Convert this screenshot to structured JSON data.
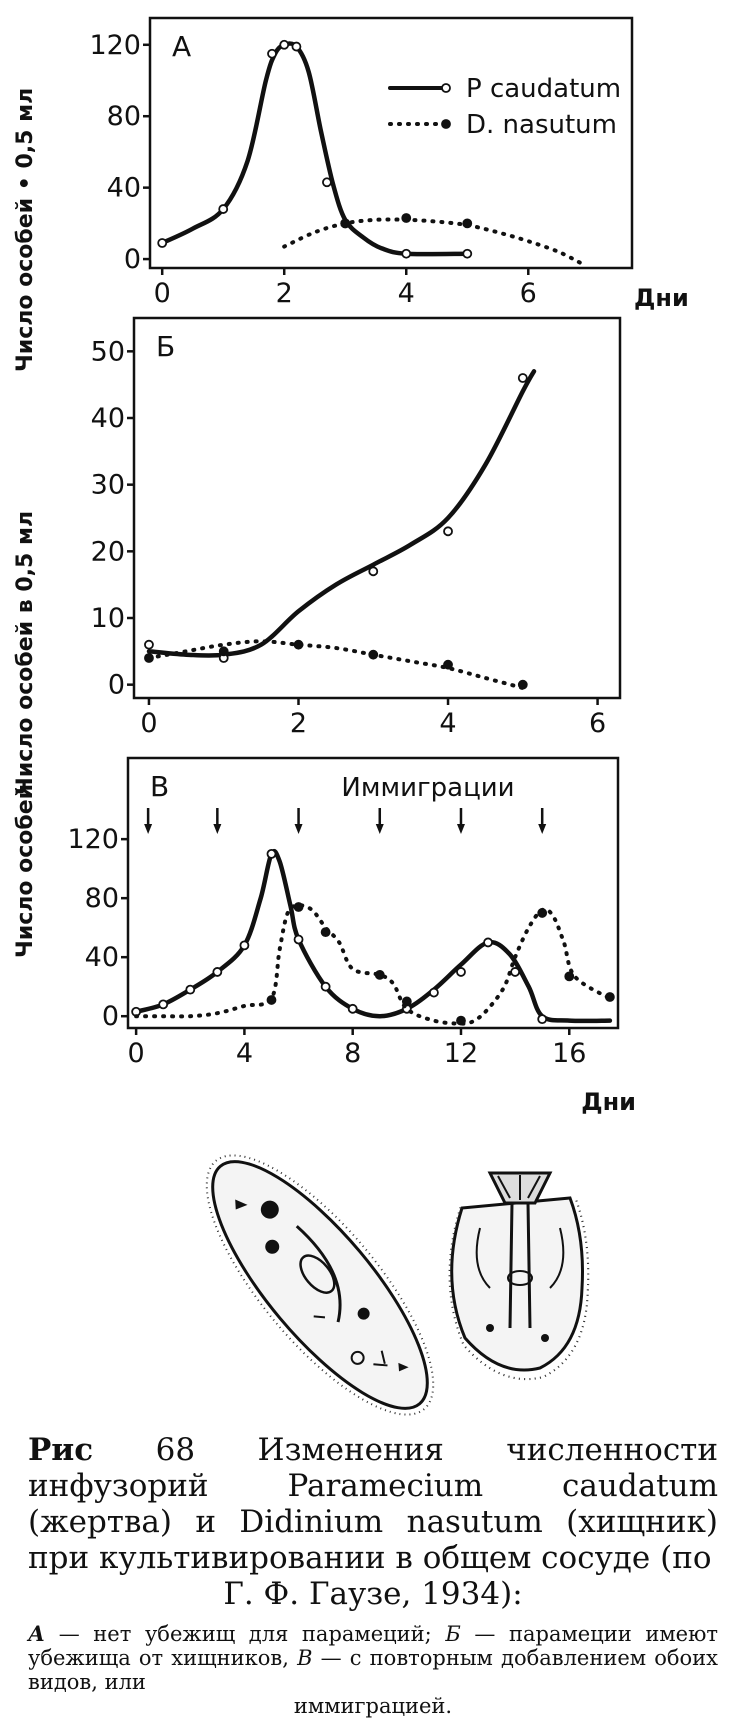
{
  "figure": {
    "ylabel_top": "Число особей • 0,5 мл",
    "ylabel_middle": "Число особей в 0,5 мл",
    "ylabel_bottom": "Число особей"
  },
  "chart_data": [
    {
      "type": "line",
      "panel_label": "А",
      "xlabel": "Дни",
      "ylabel": "Число особей • 0,5 мл",
      "xlim": [
        -0.2,
        7.7
      ],
      "ylim": [
        -5,
        135
      ],
      "x_ticks": [
        0,
        2,
        4,
        6
      ],
      "x_tick_labels": [
        "0",
        "2",
        "4",
        "6"
      ],
      "y_ticks": [
        0,
        40,
        80,
        120
      ],
      "y_tick_labels": [
        "0",
        "40",
        "80",
        "120"
      ],
      "legend": "top-right",
      "series": [
        {
          "name": "P caudatum",
          "style": "solid",
          "color": "#111111",
          "line": [
            [
              0,
              9
            ],
            [
              0.5,
              17
            ],
            [
              1,
              28
            ],
            [
              1.4,
              55
            ],
            [
              1.7,
              100
            ],
            [
              1.85,
              115
            ],
            [
              2,
              120
            ],
            [
              2.2,
              119
            ],
            [
              2.4,
              105
            ],
            [
              2.6,
              72
            ],
            [
              2.8,
              42
            ],
            [
              3,
              22
            ],
            [
              3.3,
              12
            ],
            [
              3.6,
              6
            ],
            [
              4,
              3
            ],
            [
              5,
              3
            ]
          ],
          "points": [
            [
              0,
              9
            ],
            [
              1,
              28
            ],
            [
              1.8,
              115
            ],
            [
              2,
              120
            ],
            [
              2.2,
              119
            ],
            [
              2.7,
              43
            ],
            [
              3,
              20
            ],
            [
              4,
              3
            ],
            [
              5,
              3
            ]
          ]
        },
        {
          "name": "D. nasutum",
          "style": "dotted",
          "color": "#111111",
          "line": [
            [
              2,
              7
            ],
            [
              2.5,
              15
            ],
            [
              3,
              20
            ],
            [
              3.5,
              22
            ],
            [
              4,
              22
            ],
            [
              4.5,
              21
            ],
            [
              5,
              19
            ],
            [
              5.5,
              15
            ],
            [
              6,
              10
            ],
            [
              6.5,
              4
            ],
            [
              6.9,
              -3
            ]
          ],
          "points": [
            [
              3,
              20
            ],
            [
              4,
              23
            ],
            [
              5,
              20
            ]
          ]
        }
      ]
    },
    {
      "type": "line",
      "panel_label": "Б",
      "xlabel": "",
      "ylabel": "Число особей в 0,5 мл",
      "xlim": [
        -0.2,
        6.3
      ],
      "ylim": [
        -2,
        55
      ],
      "x_ticks": [
        0,
        2,
        4,
        6
      ],
      "x_tick_labels": [
        "0",
        "2",
        "4",
        "6"
      ],
      "y_ticks": [
        0,
        10,
        20,
        30,
        40,
        50
      ],
      "y_tick_labels": [
        "0",
        "10",
        "20",
        "30",
        "40",
        "50"
      ],
      "series": [
        {
          "name": "P caudatum",
          "style": "solid",
          "color": "#111111",
          "line": [
            [
              0,
              5
            ],
            [
              0.5,
              4.5
            ],
            [
              1,
              4.5
            ],
            [
              1.5,
              6
            ],
            [
              2,
              11
            ],
            [
              2.5,
              15
            ],
            [
              3,
              18
            ],
            [
              3.5,
              21
            ],
            [
              4,
              25
            ],
            [
              4.5,
              33
            ],
            [
              5,
              44
            ],
            [
              5.15,
              47
            ]
          ],
          "points": [
            [
              0,
              6
            ],
            [
              1,
              4
            ],
            [
              3,
              17
            ],
            [
              4,
              23
            ],
            [
              5,
              46
            ]
          ]
        },
        {
          "name": "D. nasutum",
          "style": "dotted",
          "color": "#111111",
          "line": [
            [
              0,
              4
            ],
            [
              0.5,
              5
            ],
            [
              1,
              6
            ],
            [
              1.5,
              6.5
            ],
            [
              2,
              6
            ],
            [
              2.5,
              5.5
            ],
            [
              3,
              4.5
            ],
            [
              3.5,
              3.5
            ],
            [
              4,
              2.5
            ],
            [
              4.5,
              1
            ],
            [
              5,
              -0.5
            ]
          ],
          "points": [
            [
              0,
              4
            ],
            [
              1,
              5
            ],
            [
              2,
              6
            ],
            [
              3,
              4.5
            ],
            [
              4,
              3
            ],
            [
              5,
              0
            ]
          ]
        }
      ]
    },
    {
      "type": "line",
      "panel_label": "В",
      "annotation": "Иммиграции",
      "xlabel": "Дни",
      "ylabel": "Число особей",
      "xlim": [
        -0.3,
        17.8
      ],
      "ylim": [
        -8,
        175
      ],
      "x_ticks": [
        0,
        4,
        8,
        12,
        16
      ],
      "x_tick_labels": [
        "0",
        "4",
        "8",
        "12",
        "16"
      ],
      "y_ticks": [
        0,
        40,
        80,
        120
      ],
      "y_tick_labels": [
        "0",
        "40",
        "80",
        "120"
      ],
      "immigration_days": [
        0,
        3,
        6,
        9,
        12,
        15
      ],
      "series": [
        {
          "name": "P caudatum",
          "style": "solid",
          "color": "#111111",
          "line": [
            [
              0,
              3
            ],
            [
              1,
              8
            ],
            [
              2,
              18
            ],
            [
              3,
              30
            ],
            [
              4,
              48
            ],
            [
              4.6,
              80
            ],
            [
              5,
              110
            ],
            [
              5.3,
              105
            ],
            [
              5.7,
              75
            ],
            [
              6,
              52
            ],
            [
              7,
              20
            ],
            [
              8,
              5
            ],
            [
              9,
              0
            ],
            [
              10,
              5
            ],
            [
              11,
              18
            ],
            [
              12,
              35
            ],
            [
              13,
              50
            ],
            [
              13.8,
              42
            ],
            [
              14.5,
              20
            ],
            [
              15,
              0
            ],
            [
              16,
              -3
            ],
            [
              17.5,
              -3
            ]
          ],
          "points": [
            [
              0,
              3
            ],
            [
              1,
              8
            ],
            [
              2,
              18
            ],
            [
              3,
              30
            ],
            [
              4,
              48
            ],
            [
              5,
              110
            ],
            [
              6,
              52
            ],
            [
              7,
              20
            ],
            [
              8,
              5
            ],
            [
              10,
              5
            ],
            [
              11,
              16
            ],
            [
              12,
              30
            ],
            [
              13,
              50
            ],
            [
              14,
              30
            ],
            [
              15,
              -2
            ]
          ]
        },
        {
          "name": "D. nasutum",
          "style": "dotted",
          "color": "#111111",
          "line": [
            [
              0,
              0
            ],
            [
              1,
              0
            ],
            [
              2,
              0
            ],
            [
              3,
              2
            ],
            [
              4,
              7
            ],
            [
              5,
              12
            ],
            [
              5.3,
              45
            ],
            [
              5.6,
              70
            ],
            [
              6,
              75
            ],
            [
              6.5,
              72
            ],
            [
              7,
              60
            ],
            [
              7.5,
              50
            ],
            [
              8,
              32
            ],
            [
              9,
              28
            ],
            [
              9.5,
              22
            ],
            [
              10,
              5
            ],
            [
              11,
              -3
            ],
            [
              12,
              -5
            ],
            [
              12.5,
              -3
            ],
            [
              13,
              5
            ],
            [
              13.6,
              20
            ],
            [
              14,
              40
            ],
            [
              14.5,
              60
            ],
            [
              15,
              72
            ],
            [
              15.4,
              68
            ],
            [
              15.8,
              50
            ],
            [
              16.2,
              27
            ],
            [
              17.5,
              12
            ]
          ],
          "points": [
            [
              5,
              11
            ],
            [
              6,
              74
            ],
            [
              7,
              57
            ],
            [
              9,
              28
            ],
            [
              10,
              10
            ],
            [
              12,
              -3
            ],
            [
              15,
              70
            ],
            [
              16,
              27
            ],
            [
              17.5,
              13
            ]
          ]
        }
      ]
    }
  ],
  "illustrations": {
    "left_icon": "paramecium-illustration",
    "right_icon": "didinium-illustration"
  },
  "caption": {
    "fig_word": "Рис",
    "main": " 68 Изменения численности инфузорий Paramecium caudatum (жертва) и Didinium nasutum (хищник) при культивировании в общем сосуде (по",
    "main_last": "Г. Ф. Гаузе, 1934):",
    "a_letter": "А",
    "a_text": " — нет убежищ для парамеций; ",
    "b_letter": "Б",
    "b_text": " — парамеции имеют убежища от хищников, ",
    "c_letter": "В",
    "c_text": " — с повторным добавлением обоих видов, или",
    "last_line": "иммиграцией."
  }
}
